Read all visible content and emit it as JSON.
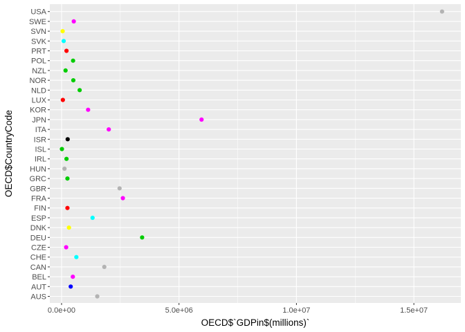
{
  "chart_data": {
    "type": "scatter",
    "xlabel": "OECD$`GDPin$(millions)`",
    "ylabel": "OECD$CountryCode",
    "xlim": [
      -500000,
      17000000
    ],
    "x_ticks": [
      0,
      5000000,
      10000000,
      15000000
    ],
    "x_tick_labels": [
      "0.0e+00",
      "5.0e+06",
      "1.0e+07",
      "1.5e+07"
    ],
    "grid": true,
    "legend": "none",
    "points": [
      {
        "country": "AUS",
        "gdp": 1520000,
        "color": "#b3b3b3"
      },
      {
        "country": "AUT",
        "gdp": 390000,
        "color": "#0000ff"
      },
      {
        "country": "BEL",
        "gdp": 480000,
        "color": "#ff00ff"
      },
      {
        "country": "CAN",
        "gdp": 1820000,
        "color": "#b3b3b3"
      },
      {
        "country": "CHE",
        "gdp": 630000,
        "color": "#00ffff"
      },
      {
        "country": "CZE",
        "gdp": 195000,
        "color": "#ff00ff"
      },
      {
        "country": "DEU",
        "gdp": 3430000,
        "color": "#00cc00"
      },
      {
        "country": "DNK",
        "gdp": 315000,
        "color": "#ffff00"
      },
      {
        "country": "ESP",
        "gdp": 1320000,
        "color": "#00ffff"
      },
      {
        "country": "FIN",
        "gdp": 250000,
        "color": "#ff0000"
      },
      {
        "country": "FRA",
        "gdp": 2610000,
        "color": "#ff00ff"
      },
      {
        "country": "GBR",
        "gdp": 2470000,
        "color": "#b3b3b3"
      },
      {
        "country": "GRC",
        "gdp": 250000,
        "color": "#00cc00"
      },
      {
        "country": "HUN",
        "gdp": 125000,
        "color": "#b3b3b3"
      },
      {
        "country": "IRL",
        "gdp": 210000,
        "color": "#00cc00"
      },
      {
        "country": "ISL",
        "gdp": 15000,
        "color": "#00cc00"
      },
      {
        "country": "ISR",
        "gdp": 260000,
        "color": "#000000"
      },
      {
        "country": "ITA",
        "gdp": 2010000,
        "color": "#ff00ff"
      },
      {
        "country": "JPN",
        "gdp": 5960000,
        "color": "#ff00ff"
      },
      {
        "country": "KOR",
        "gdp": 1130000,
        "color": "#ff00ff"
      },
      {
        "country": "LUX",
        "gdp": 55000,
        "color": "#ff0000"
      },
      {
        "country": "NLD",
        "gdp": 770000,
        "color": "#00cc00"
      },
      {
        "country": "NOR",
        "gdp": 500000,
        "color": "#00cc00"
      },
      {
        "country": "NZL",
        "gdp": 170000,
        "color": "#00cc00"
      },
      {
        "country": "POL",
        "gdp": 490000,
        "color": "#00cc00"
      },
      {
        "country": "PRT",
        "gdp": 210000,
        "color": "#ff0000"
      },
      {
        "country": "SVK",
        "gdp": 90000,
        "color": "#00ffff"
      },
      {
        "country": "SVN",
        "gdp": 46000,
        "color": "#ffff00"
      },
      {
        "country": "SWE",
        "gdp": 520000,
        "color": "#ff00ff"
      },
      {
        "country": "USA",
        "gdp": 16200000,
        "color": "#b3b3b3"
      }
    ],
    "panel_background": "#ebebeb",
    "gridline_color": "#ffffff"
  }
}
